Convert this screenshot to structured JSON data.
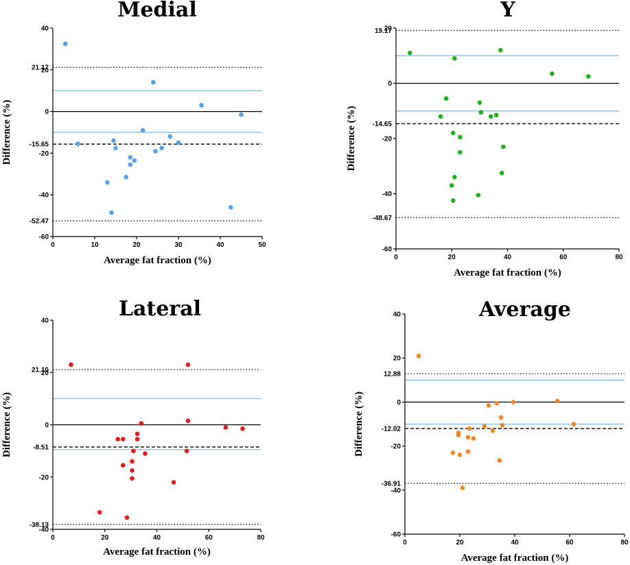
{
  "chart_data": [
    {
      "type": "scatter",
      "title": "Medial",
      "xlabel": "Average fat fraction (%)",
      "ylabel": "Difference (%)",
      "xlim": [
        0,
        50
      ],
      "ylim": [
        -60,
        40
      ],
      "xticks": [
        "0",
        "10",
        "20",
        "30",
        "40",
        "50"
      ],
      "yticks": [
        "40",
        "20",
        "0",
        "-20",
        "-40",
        "-60"
      ],
      "point_color": "#5aa2e6",
      "points": [
        {
          "x": 3,
          "y": 32.5
        },
        {
          "x": 6,
          "y": -15.5
        },
        {
          "x": 13,
          "y": -34
        },
        {
          "x": 14,
          "y": -48.5
        },
        {
          "x": 14.5,
          "y": -14
        },
        {
          "x": 15,
          "y": -17.5
        },
        {
          "x": 17.5,
          "y": -31.5
        },
        {
          "x": 18.5,
          "y": -22
        },
        {
          "x": 18.5,
          "y": -25.5
        },
        {
          "x": 19.5,
          "y": -23.5
        },
        {
          "x": 21.5,
          "y": -9
        },
        {
          "x": 24,
          "y": 14
        },
        {
          "x": 24.5,
          "y": -19
        },
        {
          "x": 26,
          "y": -17.5
        },
        {
          "x": 28,
          "y": -12
        },
        {
          "x": 30,
          "y": -15
        },
        {
          "x": 35.5,
          "y": 3
        },
        {
          "x": 42.5,
          "y": -46
        },
        {
          "x": 45,
          "y": -1.5
        }
      ],
      "mean": -15.65,
      "mean_label": "-15.65",
      "upper_loa": 21.17,
      "upper_loa_label": "21.17",
      "lower_loa": -52.47,
      "lower_loa_label": "-52.47",
      "ci_band": [
        10,
        -10
      ]
    },
    {
      "type": "scatter",
      "title": "Y",
      "xlabel": "Average fat fraction (%)",
      "ylabel": "Difference (%)",
      "xlim": [
        0,
        80
      ],
      "ylim": [
        -60,
        20
      ],
      "xticks": [
        "0",
        "20",
        "40",
        "60",
        "80"
      ],
      "yticks": [
        "20",
        "0",
        "-20",
        "-40",
        "-60"
      ],
      "point_color": "#22b022",
      "points": [
        {
          "x": 5,
          "y": 11
        },
        {
          "x": 16,
          "y": -12
        },
        {
          "x": 18,
          "y": -5.5
        },
        {
          "x": 20,
          "y": -37
        },
        {
          "x": 20.5,
          "y": -42.5
        },
        {
          "x": 20.5,
          "y": -18
        },
        {
          "x": 21,
          "y": 9
        },
        {
          "x": 21,
          "y": -34
        },
        {
          "x": 23,
          "y": -19.5
        },
        {
          "x": 23,
          "y": -25
        },
        {
          "x": 29.5,
          "y": -40.5
        },
        {
          "x": 30,
          "y": -7
        },
        {
          "x": 30.5,
          "y": -10.5
        },
        {
          "x": 34,
          "y": -12
        },
        {
          "x": 36,
          "y": -11.5
        },
        {
          "x": 37.5,
          "y": 12
        },
        {
          "x": 38,
          "y": -32.5
        },
        {
          "x": 38.5,
          "y": -23
        },
        {
          "x": 56,
          "y": 3.5
        },
        {
          "x": 69,
          "y": 2.5
        }
      ],
      "mean": -14.65,
      "mean_label": "-14.65",
      "upper_loa": 19.17,
      "upper_loa_label": "19.17",
      "lower_loa": -48.67,
      "lower_loa_label": "-48.67",
      "ci_band": [
        10,
        -10
      ]
    },
    {
      "type": "scatter",
      "title": "Lateral",
      "xlabel": "Average fat fraction (%)",
      "ylabel": "Difference (%)",
      "xlim": [
        0,
        80
      ],
      "ylim": [
        -40,
        40
      ],
      "xticks": [
        "0",
        "20",
        "40",
        "60",
        "80"
      ],
      "yticks": [
        "40",
        "20",
        "0",
        "-20",
        "-40"
      ],
      "point_color": "#e02020",
      "points": [
        {
          "x": 7,
          "y": 23
        },
        {
          "x": 18,
          "y": -33.5
        },
        {
          "x": 25,
          "y": -5.5
        },
        {
          "x": 27,
          "y": -5.5
        },
        {
          "x": 27,
          "y": -15.5
        },
        {
          "x": 28.5,
          "y": -35.5
        },
        {
          "x": 30.5,
          "y": -14
        },
        {
          "x": 30.5,
          "y": -17.5
        },
        {
          "x": 30.5,
          "y": -20.5
        },
        {
          "x": 31,
          "y": -10
        },
        {
          "x": 32.5,
          "y": -3.5
        },
        {
          "x": 32.5,
          "y": -5.5
        },
        {
          "x": 34,
          "y": 0.5
        },
        {
          "x": 35.5,
          "y": -11
        },
        {
          "x": 46.5,
          "y": -22
        },
        {
          "x": 51.5,
          "y": -10
        },
        {
          "x": 52,
          "y": 23
        },
        {
          "x": 52,
          "y": 1.5
        },
        {
          "x": 66.5,
          "y": -1
        },
        {
          "x": 73,
          "y": -1.5
        }
      ],
      "mean": -8.51,
      "mean_label": "-8.51",
      "upper_loa": 21.1,
      "upper_loa_label": "21.10",
      "lower_loa": -38.13,
      "lower_loa_label": "-38.13",
      "ci_band": [
        10,
        -9.5
      ]
    },
    {
      "type": "scatter",
      "title": "Average",
      "xlabel": "Average fat fraction (%)",
      "ylabel": "Difference (%)",
      "xlim": [
        0,
        80
      ],
      "ylim": [
        -60,
        40
      ],
      "xticks": [
        "0",
        "20",
        "40",
        "60",
        "80"
      ],
      "yticks": [
        "40",
        "20",
        "0",
        "-20",
        "-40",
        "-60"
      ],
      "point_color": "#ee8a2a",
      "points": [
        {
          "x": 5,
          "y": 21
        },
        {
          "x": 17.5,
          "y": -23
        },
        {
          "x": 19.5,
          "y": -14
        },
        {
          "x": 19.5,
          "y": -15
        },
        {
          "x": 20,
          "y": -24
        },
        {
          "x": 21,
          "y": -39
        },
        {
          "x": 23,
          "y": -16
        },
        {
          "x": 23,
          "y": -22.5
        },
        {
          "x": 23.5,
          "y": -12
        },
        {
          "x": 25,
          "y": -16.5
        },
        {
          "x": 29,
          "y": -11
        },
        {
          "x": 30.5,
          "y": -1.5
        },
        {
          "x": 32,
          "y": -13
        },
        {
          "x": 33.5,
          "y": -0.5
        },
        {
          "x": 34.5,
          "y": -26.5
        },
        {
          "x": 35,
          "y": -7
        },
        {
          "x": 35.5,
          "y": -10.5
        },
        {
          "x": 39.5,
          "y": 0
        },
        {
          "x": 55.5,
          "y": 0.5
        },
        {
          "x": 61.5,
          "y": -10
        }
      ],
      "mean": -12.02,
      "mean_label": "-12.02",
      "upper_loa": 12.88,
      "upper_loa_label": "12.88",
      "lower_loa": -36.91,
      "lower_loa_label": "-36.91",
      "ci_band": [
        10,
        -10
      ]
    }
  ],
  "colors": {
    "ci_band_line": "#8fc3ea",
    "axis": "#000000",
    "zero_line": "#000000"
  }
}
